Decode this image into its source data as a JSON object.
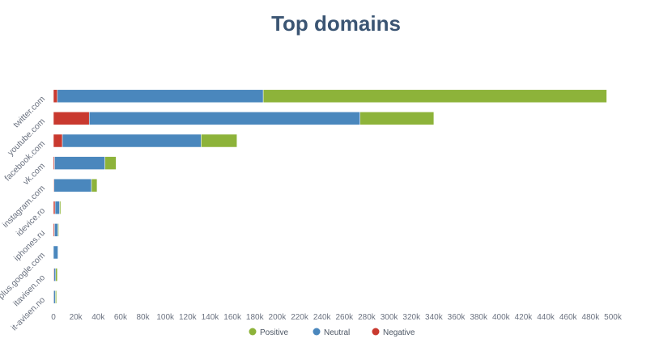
{
  "chart_data": {
    "type": "bar",
    "orientation": "horizontal",
    "stacked": true,
    "title": "Top domains",
    "categories": [
      "twitter.com",
      "youtube.com",
      "facebook.com",
      "vk.com",
      "instagram.com",
      "idevice.ro",
      "iphones.ru",
      "plus.google.com",
      "itavisen.no",
      "it-avisen.no"
    ],
    "series": [
      {
        "name": "Negative",
        "color": "#c9392f",
        "values": [
          3.5,
          32,
          8,
          1,
          0.5,
          1.5,
          1,
          0,
          0.5,
          0.3
        ]
      },
      {
        "name": "Neutral",
        "color": "#4a87bd",
        "values": [
          184,
          242,
          124,
          45,
          33.5,
          4,
          3,
          4,
          1.5,
          1.5
        ]
      },
      {
        "name": "Positive",
        "color": "#8db33a",
        "values": [
          307,
          66,
          32,
          10,
          5,
          1,
          0.3,
          0,
          1.5,
          1
        ]
      }
    ],
    "value_unit": "k",
    "xlim": [
      0,
      500
    ],
    "xticks": [
      "0",
      "20k",
      "40k",
      "60k",
      "80k",
      "100k",
      "120k",
      "140k",
      "160k",
      "180k",
      "200k",
      "220k",
      "240k",
      "260k",
      "280k",
      "300k",
      "320k",
      "340k",
      "360k",
      "380k",
      "400k",
      "420k",
      "440k",
      "460k",
      "480k",
      "500k"
    ],
    "legend_order": [
      "Positive",
      "Neutral",
      "Negative"
    ],
    "legend_position": "bottom",
    "grid": false
  }
}
